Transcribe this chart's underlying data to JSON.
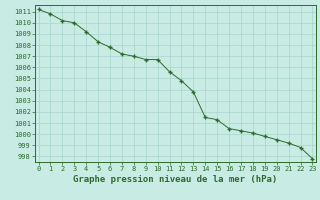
{
  "x": [
    0,
    1,
    2,
    3,
    4,
    5,
    6,
    7,
    8,
    9,
    10,
    11,
    12,
    13,
    14,
    15,
    16,
    17,
    18,
    19,
    20,
    21,
    22,
    23
  ],
  "y": [
    1011.2,
    1010.8,
    1010.2,
    1010.0,
    1009.2,
    1008.3,
    1007.8,
    1007.2,
    1007.0,
    1006.7,
    1006.7,
    1005.6,
    1004.8,
    1003.8,
    1001.5,
    1001.3,
    1000.5,
    1000.3,
    1000.1,
    999.8,
    999.5,
    999.2,
    998.8,
    997.8
  ],
  "xlim": [
    -0.3,
    23.3
  ],
  "ylim": [
    997.5,
    1011.6
  ],
  "yticks": [
    998,
    999,
    1000,
    1001,
    1002,
    1003,
    1004,
    1005,
    1006,
    1007,
    1008,
    1009,
    1010,
    1011
  ],
  "xticks": [
    0,
    1,
    2,
    3,
    4,
    5,
    6,
    7,
    8,
    9,
    10,
    11,
    12,
    13,
    14,
    15,
    16,
    17,
    18,
    19,
    20,
    21,
    22,
    23
  ],
  "xlabel": "Graphe pression niveau de la mer (hPa)",
  "line_color": "#2d6a2d",
  "marker": "+",
  "marker_size": 3.5,
  "marker_linewidth": 1.0,
  "line_width": 0.7,
  "bg_color": "#c8ece4",
  "grid_color": "#a8d4cc",
  "tick_label_color": "#2d6a2d",
  "xlabel_color": "#2d6a2d",
  "tick_fontsize": 5.0,
  "xlabel_fontsize": 6.5
}
